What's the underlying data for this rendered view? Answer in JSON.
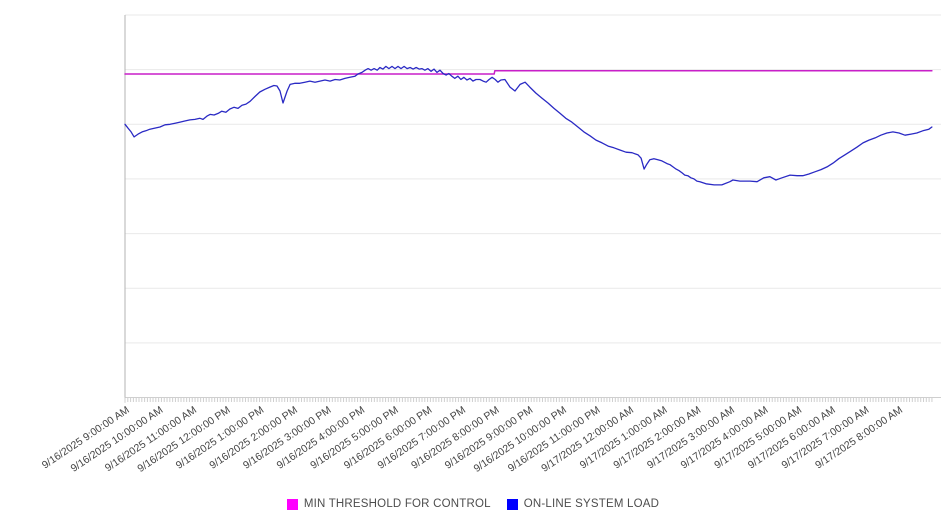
{
  "chart_data": {
    "type": "line",
    "title": "",
    "legend_position": "bottom",
    "x_axis": {
      "start_label": "9/16/2025 9:00:00 AM",
      "minor_tick_minutes": 5,
      "xlim_hours": [
        0,
        24.27
      ],
      "labels": [
        "9/16/2025 9:00:00 AM",
        "9/16/2025 10:00:00 AM",
        "9/16/2025 11:00:00 AM",
        "9/16/2025 12:00:00 PM",
        "9/16/2025 1:00:00 PM",
        "9/16/2025 2:00:00 PM",
        "9/16/2025 3:00:00 PM",
        "9/16/2025 4:00:00 PM",
        "9/16/2025 5:00:00 PM",
        "9/16/2025 6:00:00 PM",
        "9/16/2025 7:00:00 PM",
        "9/16/2025 8:00:00 PM",
        "9/16/2025 9:00:00 PM",
        "9/16/2025 10:00:00 PM",
        "9/16/2025 11:00:00 PM",
        "9/17/2025 12:00:00 AM",
        "9/17/2025 1:00:00 AM",
        "9/17/2025 2:00:00 AM",
        "9/17/2025 3:00:00 AM",
        "9/17/2025 4:00:00 AM",
        "9/17/2025 5:00:00 AM",
        "9/17/2025 6:00:00 AM",
        "9/17/2025 7:00:00 AM",
        "9/17/2025 8:00:00 AM"
      ]
    },
    "y_axis": {
      "labels_visible": false,
      "units": "unitless (gridline units)",
      "ylim": [
        0,
        7
      ],
      "gridlines": 7
    },
    "series": [
      {
        "name": "MIN THRESHOLD FOR CONTROL",
        "color": "#C81FC8",
        "legend_color": "#FF00FF",
        "points": [
          [
            0.0,
            5.92
          ],
          [
            10.98,
            5.92
          ],
          [
            11.0,
            5.98
          ],
          [
            24.0,
            5.98
          ]
        ]
      },
      {
        "name": "ON-LINE SYSTEM LOAD",
        "color": "#2A2AC4",
        "legend_color": "#0000FF",
        "points": [
          [
            0.0,
            5.0
          ],
          [
            0.09,
            4.93
          ],
          [
            0.18,
            4.86
          ],
          [
            0.27,
            4.77
          ],
          [
            0.39,
            4.82
          ],
          [
            0.51,
            4.86
          ],
          [
            0.62,
            4.88
          ],
          [
            0.74,
            4.91
          ],
          [
            0.89,
            4.93
          ],
          [
            1.04,
            4.95
          ],
          [
            1.19,
            4.99
          ],
          [
            1.34,
            5.0
          ],
          [
            1.49,
            5.02
          ],
          [
            1.64,
            5.04
          ],
          [
            1.78,
            5.06
          ],
          [
            1.93,
            5.08
          ],
          [
            2.08,
            5.09
          ],
          [
            2.23,
            5.11
          ],
          [
            2.32,
            5.09
          ],
          [
            2.44,
            5.15
          ],
          [
            2.53,
            5.18
          ],
          [
            2.65,
            5.17
          ],
          [
            2.77,
            5.2
          ],
          [
            2.88,
            5.24
          ],
          [
            3.0,
            5.22
          ],
          [
            3.12,
            5.28
          ],
          [
            3.24,
            5.31
          ],
          [
            3.36,
            5.29
          ],
          [
            3.48,
            5.35
          ],
          [
            3.6,
            5.37
          ],
          [
            3.72,
            5.42
          ],
          [
            3.87,
            5.51
          ],
          [
            4.01,
            5.59
          ],
          [
            4.16,
            5.64
          ],
          [
            4.31,
            5.68
          ],
          [
            4.43,
            5.71
          ],
          [
            4.52,
            5.7
          ],
          [
            4.61,
            5.61
          ],
          [
            4.7,
            5.39
          ],
          [
            4.82,
            5.61
          ],
          [
            4.91,
            5.73
          ],
          [
            5.06,
            5.75
          ],
          [
            5.2,
            5.75
          ],
          [
            5.35,
            5.77
          ],
          [
            5.5,
            5.79
          ],
          [
            5.65,
            5.77
          ],
          [
            5.8,
            5.79
          ],
          [
            5.95,
            5.81
          ],
          [
            6.1,
            5.79
          ],
          [
            6.25,
            5.82
          ],
          [
            6.39,
            5.81
          ],
          [
            6.54,
            5.84
          ],
          [
            6.69,
            5.86
          ],
          [
            6.84,
            5.88
          ],
          [
            6.93,
            5.92
          ],
          [
            7.05,
            5.95
          ],
          [
            7.14,
            5.99
          ],
          [
            7.23,
            6.02
          ],
          [
            7.32,
            5.99
          ],
          [
            7.41,
            6.02
          ],
          [
            7.5,
            5.99
          ],
          [
            7.58,
            6.04
          ],
          [
            7.67,
            6.01
          ],
          [
            7.76,
            6.06
          ],
          [
            7.85,
            6.02
          ],
          [
            7.94,
            6.06
          ],
          [
            8.03,
            6.02
          ],
          [
            8.12,
            6.06
          ],
          [
            8.21,
            6.02
          ],
          [
            8.3,
            6.06
          ],
          [
            8.39,
            6.02
          ],
          [
            8.48,
            6.04
          ],
          [
            8.57,
            6.01
          ],
          [
            8.66,
            6.04
          ],
          [
            8.75,
            6.01
          ],
          [
            8.83,
            6.02
          ],
          [
            8.92,
            5.99
          ],
          [
            9.01,
            6.02
          ],
          [
            9.1,
            5.97
          ],
          [
            9.19,
            6.01
          ],
          [
            9.28,
            5.95
          ],
          [
            9.37,
            5.99
          ],
          [
            9.46,
            5.93
          ],
          [
            9.55,
            5.9
          ],
          [
            9.63,
            5.93
          ],
          [
            9.72,
            5.88
          ],
          [
            9.81,
            5.84
          ],
          [
            9.9,
            5.88
          ],
          [
            9.99,
            5.82
          ],
          [
            10.08,
            5.86
          ],
          [
            10.17,
            5.81
          ],
          [
            10.26,
            5.84
          ],
          [
            10.35,
            5.79
          ],
          [
            10.44,
            5.82
          ],
          [
            10.56,
            5.82
          ],
          [
            10.65,
            5.79
          ],
          [
            10.74,
            5.77
          ],
          [
            10.83,
            5.82
          ],
          [
            10.92,
            5.86
          ],
          [
            11.01,
            5.82
          ],
          [
            11.09,
            5.77
          ],
          [
            11.18,
            5.81
          ],
          [
            11.3,
            5.82
          ],
          [
            11.45,
            5.68
          ],
          [
            11.6,
            5.61
          ],
          [
            11.75,
            5.73
          ],
          [
            11.9,
            5.77
          ],
          [
            12.04,
            5.68
          ],
          [
            12.22,
            5.57
          ],
          [
            12.4,
            5.48
          ],
          [
            12.58,
            5.39
          ],
          [
            12.76,
            5.29
          ],
          [
            12.94,
            5.2
          ],
          [
            13.11,
            5.11
          ],
          [
            13.29,
            5.04
          ],
          [
            13.47,
            4.95
          ],
          [
            13.65,
            4.86
          ],
          [
            13.83,
            4.79
          ],
          [
            14.01,
            4.71
          ],
          [
            14.19,
            4.66
          ],
          [
            14.37,
            4.6
          ],
          [
            14.54,
            4.57
          ],
          [
            14.72,
            4.53
          ],
          [
            14.9,
            4.49
          ],
          [
            15.08,
            4.48
          ],
          [
            15.26,
            4.44
          ],
          [
            15.35,
            4.38
          ],
          [
            15.44,
            4.18
          ],
          [
            15.52,
            4.27
          ],
          [
            15.61,
            4.35
          ],
          [
            15.73,
            4.37
          ],
          [
            15.85,
            4.35
          ],
          [
            15.97,
            4.33
          ],
          [
            16.12,
            4.28
          ],
          [
            16.21,
            4.26
          ],
          [
            16.3,
            4.22
          ],
          [
            16.39,
            4.18
          ],
          [
            16.48,
            4.15
          ],
          [
            16.57,
            4.11
          ],
          [
            16.65,
            4.07
          ],
          [
            16.74,
            4.06
          ],
          [
            16.83,
            4.02
          ],
          [
            16.92,
            4.0
          ],
          [
            17.01,
            3.96
          ],
          [
            17.1,
            3.95
          ],
          [
            17.28,
            3.91
          ],
          [
            17.52,
            3.89
          ],
          [
            17.75,
            3.89
          ],
          [
            17.99,
            3.95
          ],
          [
            18.08,
            3.98
          ],
          [
            18.29,
            3.96
          ],
          [
            18.59,
            3.96
          ],
          [
            18.8,
            3.95
          ],
          [
            19.0,
            4.02
          ],
          [
            19.18,
            4.04
          ],
          [
            19.36,
            3.98
          ],
          [
            19.54,
            4.02
          ],
          [
            19.78,
            4.07
          ],
          [
            19.99,
            4.06
          ],
          [
            20.16,
            4.06
          ],
          [
            20.34,
            4.09
          ],
          [
            20.52,
            4.13
          ],
          [
            20.7,
            4.17
          ],
          [
            20.88,
            4.22
          ],
          [
            21.06,
            4.29
          ],
          [
            21.23,
            4.37
          ],
          [
            21.41,
            4.44
          ],
          [
            21.59,
            4.51
          ],
          [
            21.77,
            4.58
          ],
          [
            21.95,
            4.66
          ],
          [
            22.13,
            4.71
          ],
          [
            22.31,
            4.75
          ],
          [
            22.48,
            4.8
          ],
          [
            22.66,
            4.84
          ],
          [
            22.84,
            4.86
          ],
          [
            23.02,
            4.84
          ],
          [
            23.2,
            4.8
          ],
          [
            23.38,
            4.82
          ],
          [
            23.55,
            4.84
          ],
          [
            23.73,
            4.88
          ],
          [
            23.91,
            4.91
          ],
          [
            24.0,
            4.95
          ]
        ]
      }
    ]
  },
  "legend": {
    "items": [
      {
        "label": "MIN THRESHOLD FOR CONTROL"
      },
      {
        "label": "ON-LINE SYSTEM LOAD"
      }
    ]
  }
}
